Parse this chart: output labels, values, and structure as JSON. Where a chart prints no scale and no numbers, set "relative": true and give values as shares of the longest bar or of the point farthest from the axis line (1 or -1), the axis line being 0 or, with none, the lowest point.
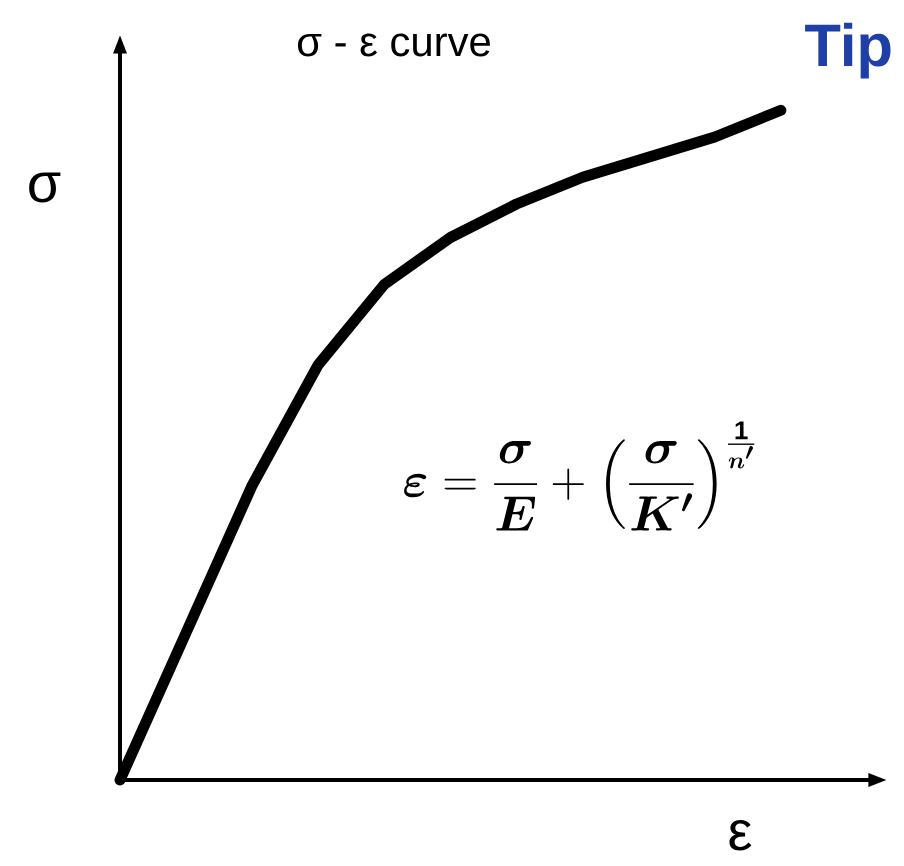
{
  "chart_data": {
    "type": "line",
    "title": "σ - ε curve",
    "xlabel": "ε",
    "ylabel": "σ",
    "annotations": [
      "Tip",
      "\\boldsymbol{\\varepsilon} = \\frac{\\boldsymbol{\\sigma}}{\\boldsymbol{E}} + \\left(\\frac{\\boldsymbol{\\sigma}}{\\boldsymbol{K'}}\\right)^{\\frac{\\mathbf{1}}{\\boldsymbol{n'}}}"
    ],
    "categories": [
      null,
      null,
      null,
      null,
      null,
      null,
      null,
      null,
      null,
      null,
      null
    ],
    "values": [
      0,
      0.22,
      0.44,
      0.62,
      0.74,
      0.81,
      0.86,
      0.9,
      0.93,
      0.96,
      1
    ],
    "color": "#000000",
    "relative": true,
    "marker": "none",
    "line_style": "solid"
  }
}
